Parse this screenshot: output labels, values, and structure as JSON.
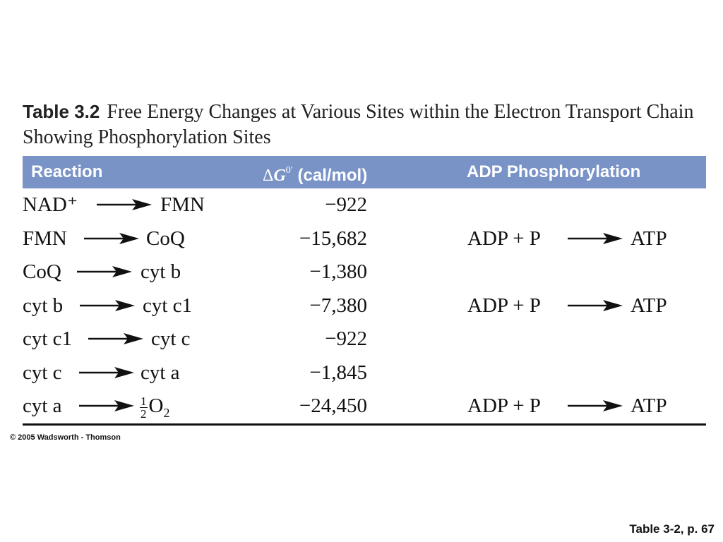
{
  "title": {
    "number": "Table 3.2",
    "text": "Free Energy Changes at Various Sites within the Electron Transport Chain Showing Phosphorylation Sites"
  },
  "headers": {
    "reaction": "Reaction",
    "delta_symbol": "Δ",
    "g_symbol": "G",
    "g_superscript": "0′",
    "units": " (cal/mol)",
    "adp": "ADP Phosphorylation"
  },
  "rows": [
    {
      "from": "NAD⁺",
      "to": "FMN",
      "value": "−922",
      "adp": "",
      "atp": ""
    },
    {
      "from": "FMN",
      "to": "CoQ",
      "value": "−15,682",
      "adp": "ADP + P",
      "atp": "ATP"
    },
    {
      "from": "CoQ",
      "to": "cyt b",
      "value": "−1,380",
      "adp": "",
      "atp": ""
    },
    {
      "from": "cyt b",
      "to": "cyt c1",
      "value": "−7,380",
      "adp": "ADP + P",
      "atp": "ATP"
    },
    {
      "from": "cyt c1",
      "to": "cyt c",
      "value": "−922",
      "adp": "",
      "atp": ""
    },
    {
      "from": "cyt c",
      "to": "cyt a",
      "value": "−1,845",
      "adp": "",
      "atp": ""
    },
    {
      "from": "cyt a",
      "to_fraction_num": "1",
      "to_fraction_den": "2",
      "to_base": "O",
      "to_sub": "2",
      "value": "−24,450",
      "adp": "ADP + P",
      "atp": "ATP"
    }
  ],
  "copyright": "© 2005 Wadsworth - Thomson",
  "caption": "Table 3-2, p. 67",
  "colors": {
    "header_bar": "#7993c7",
    "header_text": "#ffffff"
  },
  "icons": {
    "reaction_arrow": "arrow-right-icon"
  }
}
